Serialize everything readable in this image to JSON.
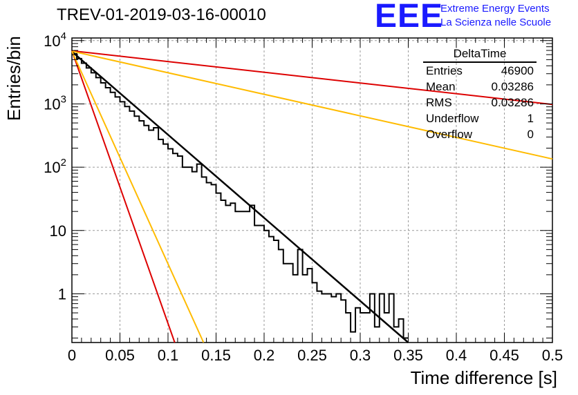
{
  "title": "TREV-01-2019-03-16-00010",
  "logo": {
    "mark": "EEE",
    "line1": "Extreme Energy Events",
    "line2": "La Scienza nelle Scuole",
    "color": "#1a1aff"
  },
  "stats": {
    "name": "DeltaTime",
    "rows": [
      {
        "label": "Entries",
        "value": "46900"
      },
      {
        "label": "Mean",
        "value": "0.03286"
      },
      {
        "label": "RMS",
        "value": "0.03286"
      },
      {
        "label": "Underflow",
        "value": "1"
      },
      {
        "label": "Overflow",
        "value": "0"
      }
    ]
  },
  "chart_data": {
    "type": "line",
    "xlabel": "Time difference [s]",
    "ylabel": "Entries/bin",
    "xlim": [
      0,
      0.5
    ],
    "ylim": [
      0.17,
      11000
    ],
    "yscale": "log",
    "grid": true,
    "x_ticks": [
      "0",
      "0.05",
      "0.1",
      "0.15",
      "0.2",
      "0.25",
      "0.3",
      "0.35",
      "0.4",
      "0.45",
      "0.5"
    ],
    "y_ticks": [
      {
        "value": 1,
        "label": "1"
      },
      {
        "value": 10,
        "label": "10"
      },
      {
        "value": 100,
        "label": "10^2"
      },
      {
        "value": 1000,
        "label": "10^3"
      },
      {
        "value": 10000,
        "label": "10^4"
      }
    ],
    "histogram": {
      "bin_width": 0.005,
      "color": "#000000",
      "values": [
        6200,
        5200,
        4400,
        3700,
        3100,
        2600,
        2150,
        1800,
        1520,
        1290,
        1080,
        910,
        770,
        640,
        540,
        455,
        385,
        420,
        275,
        232,
        195,
        165,
        150,
        100,
        100,
        85,
        112,
        70,
        57,
        53,
        39,
        30,
        25,
        27,
        20,
        20,
        20,
        25,
        12,
        12,
        10,
        8,
        7,
        5,
        3,
        3,
        2,
        5,
        2,
        2.5,
        1.5,
        1.1,
        1,
        1,
        0.9,
        1,
        0.8,
        0.5,
        0.25,
        0.6,
        0.5,
        0.5,
        1,
        0.3,
        1,
        0.5,
        1,
        0.3,
        0.4,
        0.2
      ]
    },
    "series": [
      {
        "color": "#000000",
        "x": [
          0,
          0.35
        ],
        "y": [
          6700,
          0.17
        ]
      },
      {
        "color": "#dd0000",
        "x": [
          0,
          0.5
        ],
        "y": [
          6900,
          980
        ]
      },
      {
        "color": "#ffbb00",
        "x": [
          0,
          0.5
        ],
        "y": [
          6800,
          135
        ]
      },
      {
        "color": "#dd0000",
        "x": [
          0,
          0.107
        ],
        "y": [
          6900,
          0.17
        ]
      },
      {
        "color": "#ffbb00",
        "x": [
          0,
          0.137
        ],
        "y": [
          6800,
          0.17
        ]
      }
    ]
  }
}
